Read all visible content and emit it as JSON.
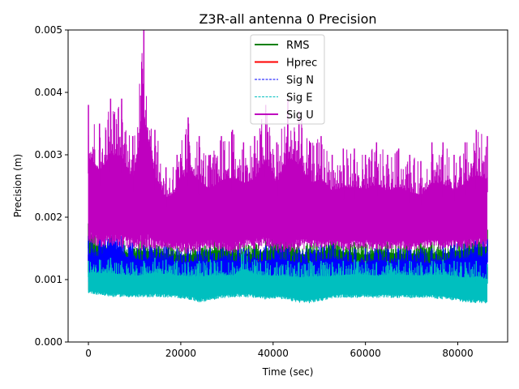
{
  "chart_data": {
    "type": "line",
    "title": "Z3R-all antenna 0 Precision",
    "xlabel": "Time (sec)",
    "ylabel": "Precision (m)",
    "xlim": [
      -4400,
      90800
    ],
    "ylim": [
      0,
      0.005
    ],
    "xticks": [
      0,
      20000,
      40000,
      60000,
      80000
    ],
    "xtick_labels": [
      "0",
      "20000",
      "40000",
      "60000",
      "80000"
    ],
    "yticks": [
      0,
      0.001,
      0.002,
      0.003,
      0.004,
      0.005
    ],
    "ytick_labels": [
      "0.000",
      "0.001",
      "0.002",
      "0.003",
      "0.004",
      "0.005"
    ],
    "grid": false,
    "legend": {
      "placement": "upper-center",
      "entries": [
        {
          "name": "RMS",
          "color": "#008000",
          "style": "solid"
        },
        {
          "name": "Hprec",
          "color": "#ff0000",
          "style": "solid"
        },
        {
          "name": "Sig N",
          "color": "#0000ff",
          "style": "dashed"
        },
        {
          "name": "Sig E",
          "color": "#00bfbf",
          "style": "dashed"
        },
        {
          "name": "Sig U",
          "color": "#bf00bf",
          "style": "solid"
        }
      ]
    },
    "x_range_data": [
      0,
      86400
    ],
    "sample_step_sec": 2400,
    "series": [
      {
        "name": "Hprec",
        "color": "#ff0000",
        "min": [
          0.00083,
          0.00082,
          0.00082,
          0.00081,
          0.00082,
          0.00082,
          0.00081,
          0.00082,
          0.00082,
          0.00081,
          0.0008,
          0.00082,
          0.00082,
          0.00081,
          0.00076,
          0.0008,
          0.00081,
          0.00082,
          0.0008,
          0.00079,
          0.0008,
          0.00079,
          0.00078,
          0.0008,
          0.0008,
          0.00081,
          0.0008,
          0.00081,
          0.00082,
          0.00081,
          0.00081,
          0.00081,
          0.0008,
          0.0008,
          0.00081,
          0.00081,
          0.00082
        ],
        "max": [
          0.0014,
          0.00135,
          0.0013,
          0.00132,
          0.0013,
          0.00131,
          0.00133,
          0.0013,
          0.00132,
          0.0013,
          0.00131,
          0.00134,
          0.00133,
          0.0013,
          0.00131,
          0.00132,
          0.00135,
          0.00137,
          0.00132,
          0.0013,
          0.00131,
          0.00133,
          0.00136,
          0.00135,
          0.0013,
          0.00131,
          0.00133,
          0.00137,
          0.0013,
          0.00131,
          0.00132,
          0.00134,
          0.00131,
          0.00133,
          0.0013,
          0.00131,
          0.0012
        ]
      },
      {
        "name": "RMS",
        "color": "#008000",
        "min": [
          0.0011,
          0.0011,
          0.0011,
          0.0011,
          0.0011,
          0.0011,
          0.0011,
          0.0011,
          0.0011,
          0.0011,
          0.0011,
          0.0011,
          0.0011,
          0.0011,
          0.0011,
          0.0011,
          0.0011,
          0.0011,
          0.0011,
          0.0011,
          0.0011,
          0.0011,
          0.0011,
          0.0011,
          0.0011,
          0.0011,
          0.0011,
          0.0011,
          0.0011,
          0.0011,
          0.0011,
          0.0011,
          0.0011,
          0.0011,
          0.0011,
          0.0011,
          0.0011
        ],
        "max": [
          0.0019,
          0.00175,
          0.0017,
          0.00165,
          0.0016,
          0.00168,
          0.00165,
          0.0016,
          0.00158,
          0.00155,
          0.0016,
          0.00165,
          0.0017,
          0.0016,
          0.00158,
          0.0016,
          0.00165,
          0.0018,
          0.00178,
          0.0016,
          0.00158,
          0.00165,
          0.00175,
          0.00165,
          0.0016,
          0.00158,
          0.00162,
          0.00165,
          0.0016,
          0.00158,
          0.00162,
          0.0016,
          0.0016,
          0.00165,
          0.0017,
          0.00175,
          0.0018
        ]
      },
      {
        "name": "Sig N",
        "color": "#0000ff",
        "min": [
          0.0009,
          0.0009,
          0.00088,
          0.0009,
          0.0009,
          0.00092,
          0.0009,
          0.0009,
          0.00088,
          0.0009,
          0.0009,
          0.0009,
          0.0009,
          0.0009,
          0.0009,
          0.00088,
          0.0009,
          0.0009,
          0.0009,
          0.0009,
          0.00088,
          0.0009,
          0.0009,
          0.0009,
          0.0009,
          0.00088,
          0.0009,
          0.0009,
          0.0009,
          0.0009,
          0.0009,
          0.00088,
          0.0009,
          0.0009,
          0.0009,
          0.0009,
          0.0009
        ],
        "max": [
          0.0017,
          0.00165,
          0.002,
          0.0017,
          0.0016,
          0.00155,
          0.0016,
          0.00155,
          0.0015,
          0.0015,
          0.00155,
          0.0015,
          0.0016,
          0.00155,
          0.0015,
          0.0015,
          0.00155,
          0.0016,
          0.00155,
          0.0015,
          0.0015,
          0.00155,
          0.0016,
          0.00155,
          0.0015,
          0.0015,
          0.00155,
          0.0015,
          0.0015,
          0.00155,
          0.0015,
          0.0015,
          0.00155,
          0.0016,
          0.0016,
          0.00165,
          0.00165
        ]
      },
      {
        "name": "Sig E",
        "color": "#00bfbf",
        "min": [
          0.00078,
          0.00075,
          0.00072,
          0.00072,
          0.00071,
          0.00071,
          0.00072,
          0.00071,
          0.0007,
          0.00068,
          0.00063,
          0.00066,
          0.0007,
          0.00071,
          0.00072,
          0.0007,
          0.00068,
          0.0007,
          0.00066,
          0.00063,
          0.00062,
          0.00065,
          0.0007,
          0.00071,
          0.0007,
          0.00072,
          0.0007,
          0.00071,
          0.0007,
          0.0007,
          0.00071,
          0.0007,
          0.00068,
          0.00066,
          0.00063,
          0.00062,
          0.00062
        ],
        "max": [
          0.0013,
          0.00132,
          0.00135,
          0.0013,
          0.00128,
          0.0013,
          0.00135,
          0.00132,
          0.0013,
          0.00128,
          0.0013,
          0.00132,
          0.0013,
          0.00128,
          0.00145,
          0.00132,
          0.0013,
          0.00128,
          0.0013,
          0.00128,
          0.0013,
          0.0013,
          0.00128,
          0.0013,
          0.00132,
          0.0013,
          0.00128,
          0.0013,
          0.00132,
          0.0013,
          0.00128,
          0.0013,
          0.00132,
          0.0013,
          0.00128,
          0.0013,
          0.00125
        ]
      },
      {
        "name": "Sig U",
        "color": "#bf00bf",
        "min": [
          0.0016,
          0.0015,
          0.00155,
          0.0015,
          0.0015,
          0.00145,
          0.00148,
          0.0015,
          0.00145,
          0.0014,
          0.00145,
          0.0015,
          0.00145,
          0.0014,
          0.0015,
          0.00148,
          0.0015,
          0.00145,
          0.0014,
          0.00145,
          0.0015,
          0.00148,
          0.0015,
          0.00145,
          0.00148,
          0.0015,
          0.00145,
          0.00148,
          0.0015,
          0.00145,
          0.00148,
          0.0015,
          0.00145,
          0.0015,
          0.00148,
          0.0015,
          0.0015
        ],
        "max": [
          0.0038,
          0.0035,
          0.0039,
          0.0039,
          0.0033,
          0.005,
          0.0034,
          0.0028,
          0.003,
          0.0036,
          0.0033,
          0.003,
          0.0033,
          0.0034,
          0.0032,
          0.0033,
          0.0038,
          0.0032,
          0.0039,
          0.0037,
          0.0032,
          0.0033,
          0.003,
          0.0031,
          0.0031,
          0.003,
          0.0032,
          0.003,
          0.0031,
          0.003,
          0.0029,
          0.0032,
          0.0032,
          0.003,
          0.0032,
          0.0034,
          0.0033
        ]
      }
    ],
    "annotations": []
  }
}
